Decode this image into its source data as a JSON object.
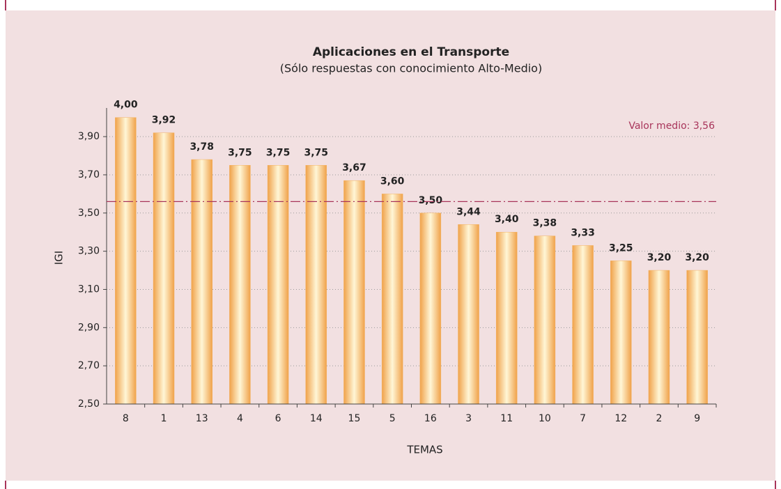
{
  "chart_data": {
    "type": "bar",
    "title": "Aplicaciones en el Transporte",
    "subtitle": "(Sólo respuestas con conocimiento Alto-Medio)",
    "x_label": "TEMAS",
    "y_label": "IGI",
    "categories": [
      "8",
      "1",
      "13",
      "4",
      "6",
      "14",
      "15",
      "5",
      "16",
      "3",
      "11",
      "10",
      "7",
      "12",
      "2",
      "9"
    ],
    "values": [
      4.0,
      3.92,
      3.78,
      3.75,
      3.75,
      3.75,
      3.67,
      3.6,
      3.5,
      3.44,
      3.4,
      3.38,
      3.33,
      3.25,
      3.2,
      3.2
    ],
    "value_labels": [
      "4,00",
      "3,92",
      "3,78",
      "3,75",
      "3,75",
      "3,75",
      "3,67",
      "3,60",
      "3,50",
      "3,44",
      "3,40",
      "3,38",
      "3,33",
      "3,25",
      "3,20",
      "3,20"
    ],
    "color": "#f3b262",
    "ylim": [
      2.5,
      4.05
    ],
    "yticks": [
      {
        "value": 2.5,
        "label": "2,50"
      },
      {
        "value": 2.7,
        "label": "2,70"
      },
      {
        "value": 2.9,
        "label": "2,90"
      },
      {
        "value": 3.1,
        "label": "3,10"
      },
      {
        "value": 3.3,
        "label": "3,30"
      },
      {
        "value": 3.5,
        "label": "3,50"
      },
      {
        "value": 3.7,
        "label": "3,70"
      },
      {
        "value": 3.9,
        "label": "3,90"
      }
    ],
    "grid": true,
    "mean_line": {
      "value": 3.56,
      "label": "Valor medio: 3,56",
      "color": "#a8345a"
    }
  }
}
